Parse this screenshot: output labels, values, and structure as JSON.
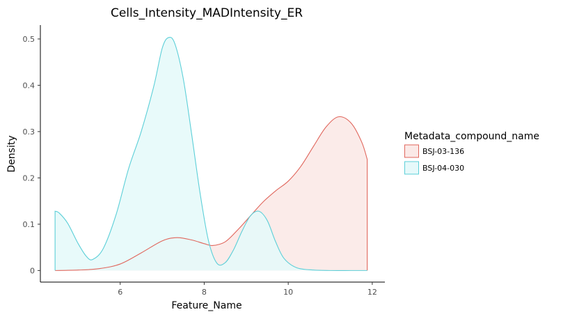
{
  "chart_data": {
    "type": "area",
    "title": "Cells_Intensity_MADIntensity_ER",
    "xlabel": "Feature_Name",
    "ylabel": "Density",
    "xlim": [
      4.1,
      12.3
    ],
    "ylim": [
      -0.025,
      0.53
    ],
    "x_ticks": [
      6,
      8,
      10,
      12
    ],
    "y_ticks": [
      0,
      0.1,
      0.2,
      0.3,
      0.4,
      0.5
    ],
    "x_tick_labels": [
      "6",
      "8",
      "10",
      "12"
    ],
    "y_tick_labels": [
      "0",
      "0.1",
      "0.2",
      "0.3",
      "0.4",
      "0.5"
    ],
    "grid": false,
    "legend_placement": "right",
    "legend_title": "Metadata_compound_name",
    "series": [
      {
        "name": "BSJ-03-136",
        "color": "#e0665c",
        "fill": "#fbe9e7",
        "x": [
          4.45,
          5.0,
          5.5,
          6.0,
          6.5,
          7.0,
          7.35,
          7.7,
          8.0,
          8.2,
          8.5,
          8.8,
          9.1,
          9.4,
          9.7,
          10.0,
          10.3,
          10.6,
          10.9,
          11.2,
          11.5,
          11.75,
          11.88,
          11.88,
          4.45
        ],
        "y": [
          0.0,
          0.001,
          0.004,
          0.014,
          0.038,
          0.064,
          0.071,
          0.066,
          0.058,
          0.054,
          0.062,
          0.088,
          0.118,
          0.148,
          0.172,
          0.193,
          0.225,
          0.268,
          0.31,
          0.332,
          0.318,
          0.277,
          0.24,
          0.0,
          0.0
        ]
      },
      {
        "name": "BSJ-04-030",
        "color": "#5ccfd8",
        "fill": "#e6f9fa",
        "x": [
          4.45,
          4.55,
          4.75,
          5.0,
          5.2,
          5.35,
          5.6,
          5.9,
          6.2,
          6.5,
          6.8,
          7.0,
          7.15,
          7.3,
          7.5,
          7.7,
          7.9,
          8.1,
          8.3,
          8.5,
          8.7,
          8.9,
          9.1,
          9.3,
          9.5,
          9.7,
          9.9,
          10.2,
          10.6,
          11.0,
          11.5,
          11.88,
          11.88,
          4.45
        ],
        "y": [
          0.128,
          0.124,
          0.102,
          0.058,
          0.03,
          0.024,
          0.048,
          0.12,
          0.22,
          0.3,
          0.398,
          0.48,
          0.503,
          0.49,
          0.415,
          0.295,
          0.168,
          0.065,
          0.016,
          0.017,
          0.045,
          0.085,
          0.118,
          0.128,
          0.108,
          0.062,
          0.026,
          0.006,
          0.001,
          0.0,
          0.0,
          0.0,
          0.0,
          0.0
        ]
      }
    ]
  }
}
